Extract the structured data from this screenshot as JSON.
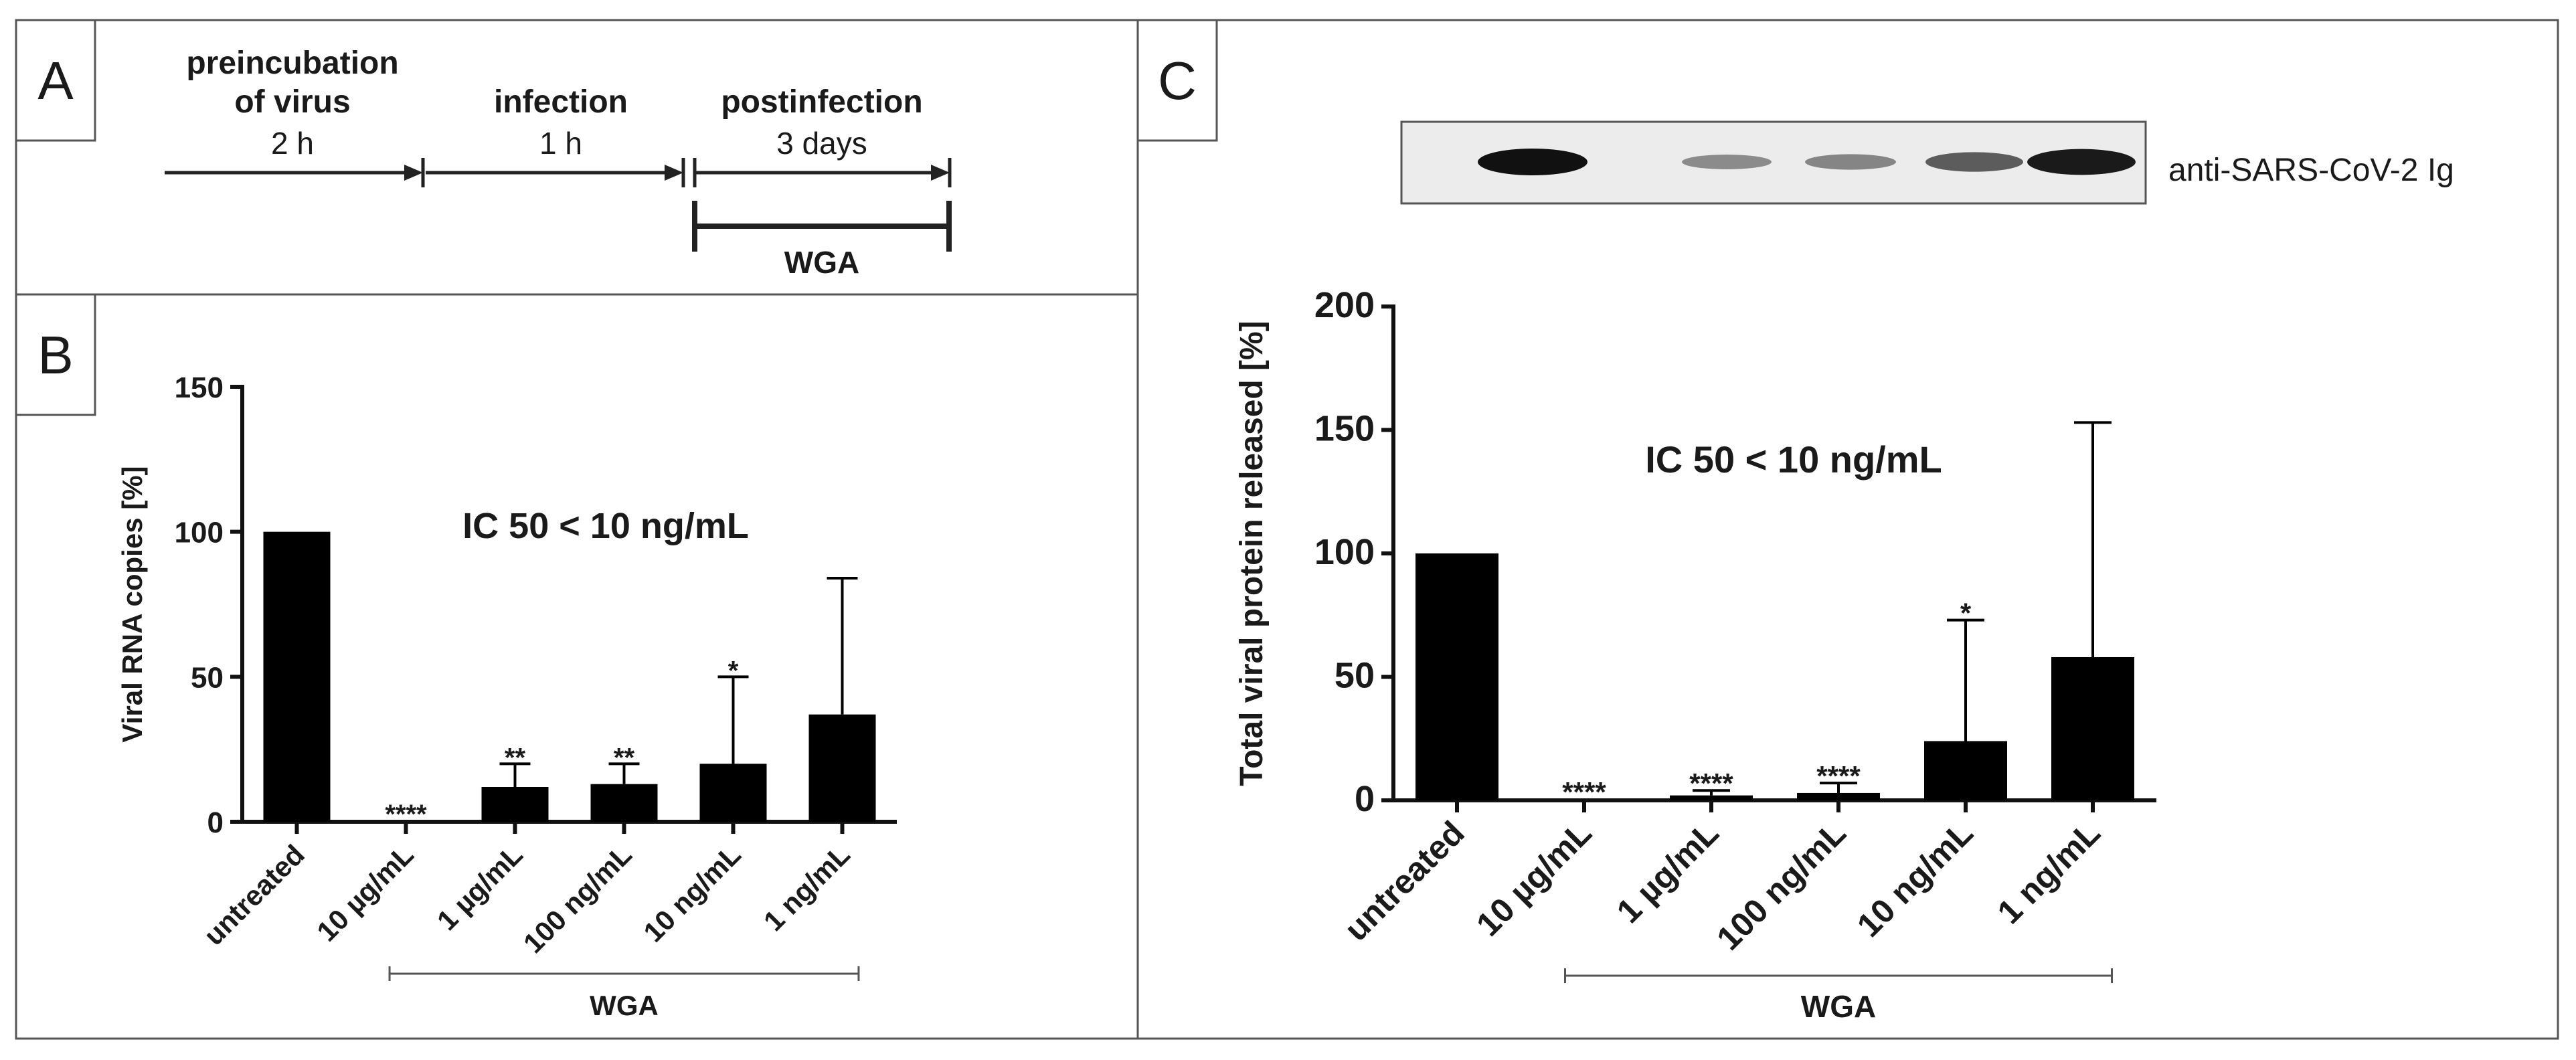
{
  "panels": {
    "a": {
      "letter": "A",
      "steps": [
        {
          "title_line1": "preincubation",
          "title_line2": "of virus",
          "duration": "2 h"
        },
        {
          "title_line1": "infection",
          "title_line2": "",
          "duration": "1 h"
        },
        {
          "title_line1": "postinfection",
          "title_line2": "",
          "duration": "3 days"
        }
      ],
      "treatment": "WGA"
    },
    "b": {
      "letter": "B"
    },
    "c": {
      "letter": "C"
    }
  },
  "blot": {
    "label": "anti-SARS-CoV-2 Ig",
    "band_intensities": [
      1.0,
      0.0,
      0.25,
      0.3,
      0.55,
      0.95
    ]
  },
  "chart_data": [
    {
      "type": "bar",
      "panel": "B",
      "title": "",
      "annotation": "IC 50 < 10 ng/mL",
      "xlabel": "",
      "ylabel": "Viral RNA copies [%]",
      "ylim": [
        0,
        150
      ],
      "yticks": [
        0,
        50,
        100,
        150
      ],
      "categories": [
        "untreated",
        "10 µg/mL",
        "1 µg/mL",
        "100 ng/mL",
        "10 ng/mL",
        "1 ng/mL"
      ],
      "values": [
        100,
        0,
        12,
        13,
        20,
        37
      ],
      "error_upper": [
        0,
        0,
        8,
        7,
        30,
        47
      ],
      "significance": [
        "",
        "****",
        "**",
        "**",
        "*",
        ""
      ],
      "group_label": "WGA",
      "group_span": [
        1,
        5
      ]
    },
    {
      "type": "bar",
      "panel": "C",
      "title": "",
      "annotation": "IC 50 < 10 ng/mL",
      "xlabel": "",
      "ylabel": "Total viral protein released [%]",
      "ylim": [
        0,
        200
      ],
      "yticks": [
        0,
        50,
        100,
        150,
        200
      ],
      "categories": [
        "untreated",
        "10 µg/mL",
        "1 µg/mL",
        "100 ng/mL",
        "10 ng/mL",
        "1 ng/mL"
      ],
      "values": [
        100,
        0,
        2,
        3,
        24,
        58
      ],
      "error_upper": [
        0,
        0,
        2,
        4,
        49,
        95
      ],
      "significance": [
        "",
        "****",
        "****",
        "****",
        "*",
        ""
      ],
      "group_label": "WGA",
      "group_span": [
        1,
        5
      ]
    }
  ]
}
